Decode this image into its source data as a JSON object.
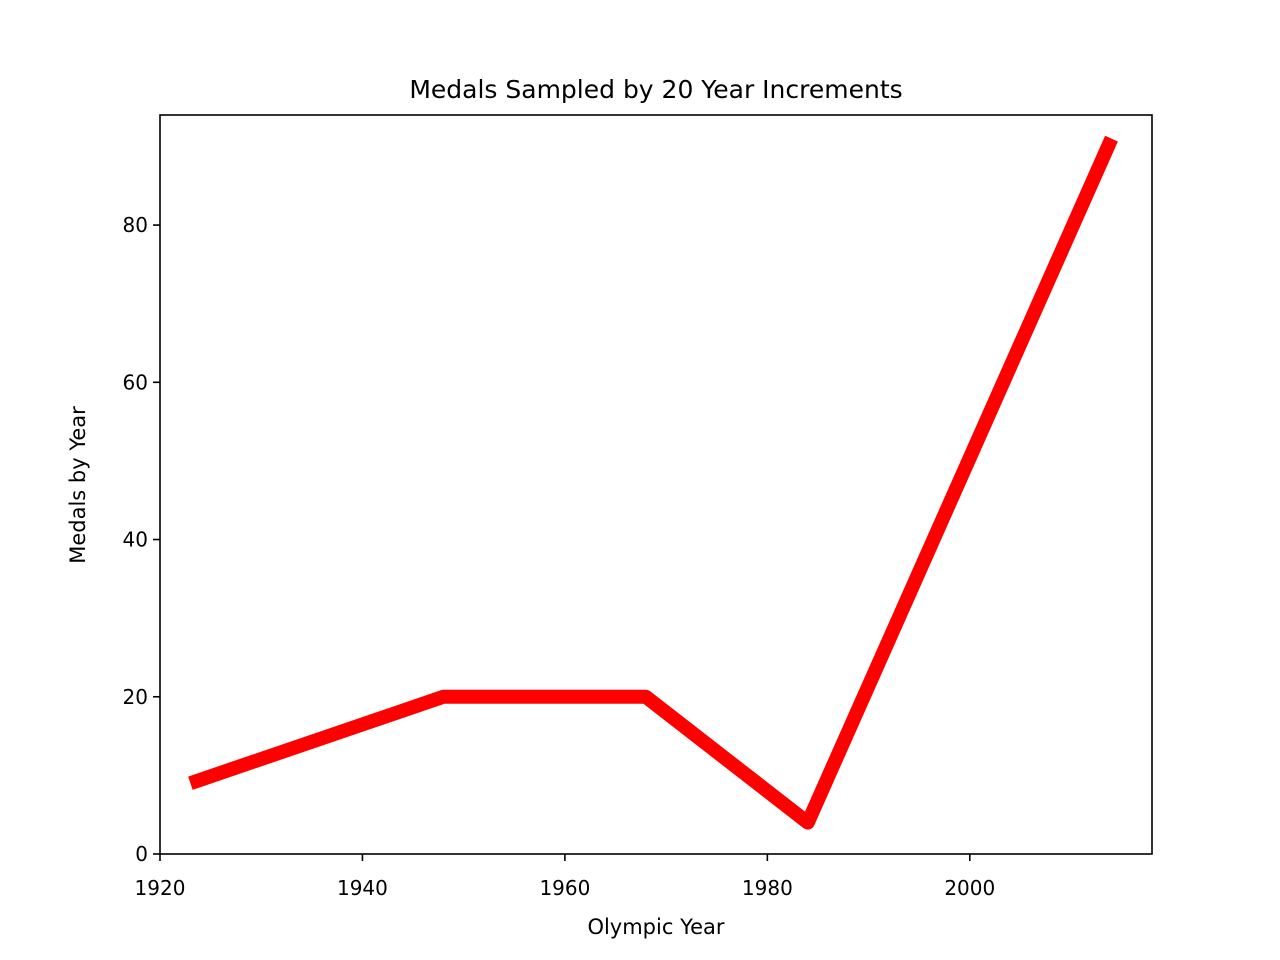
{
  "chart_data": {
    "type": "line",
    "title": "Medals Sampled by 20 Year Increments",
    "xlabel": "Olympic Year",
    "ylabel": "Medals by Year",
    "x": [
      1923,
      1948,
      1968,
      1984,
      2014
    ],
    "series": [
      {
        "values": [
          9,
          20,
          20,
          4,
          91
        ],
        "color": "#ff0000"
      }
    ],
    "xlim": [
      1920,
      2018
    ],
    "ylim": [
      0,
      94
    ],
    "xticks": [
      1920,
      1940,
      1960,
      1980,
      2000
    ],
    "yticks": [
      0,
      20,
      40,
      60,
      80
    ],
    "grid": false,
    "legend": "none"
  }
}
